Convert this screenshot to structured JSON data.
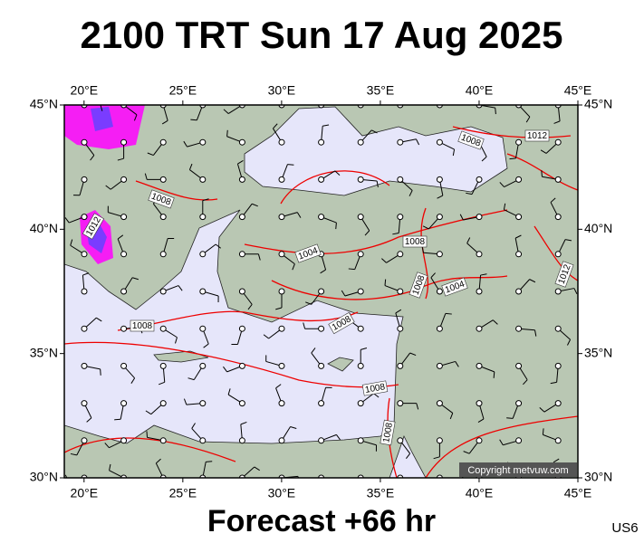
{
  "title": "2100 TRT Sun 17 Aug 2025",
  "footer": "Forecast +66 hr",
  "code": "US6",
  "copyright": "Copyright metvuw.com",
  "map": {
    "lon_ticks": [
      {
        "value": 20,
        "label": "20°E"
      },
      {
        "value": 25,
        "label": "25°E"
      },
      {
        "value": 30,
        "label": "30°E"
      },
      {
        "value": 35,
        "label": "35°E"
      },
      {
        "value": 40,
        "label": "40°E"
      },
      {
        "value": 45,
        "label": "45°E"
      }
    ],
    "lat_ticks": [
      {
        "value": 30,
        "label": "30°N"
      },
      {
        "value": 35,
        "label": "35°N"
      },
      {
        "value": 40,
        "label": "40°N"
      },
      {
        "value": 45,
        "label": "45°N"
      }
    ],
    "lonlim": [
      19,
      45
    ],
    "latlim": [
      30,
      45
    ],
    "isobar_labels": [
      "1008",
      "1012",
      "1008",
      "1012",
      "1004",
      "1008",
      "1008",
      "1004",
      "1012",
      "1008",
      "1008",
      "1008",
      "1008"
    ]
  }
}
